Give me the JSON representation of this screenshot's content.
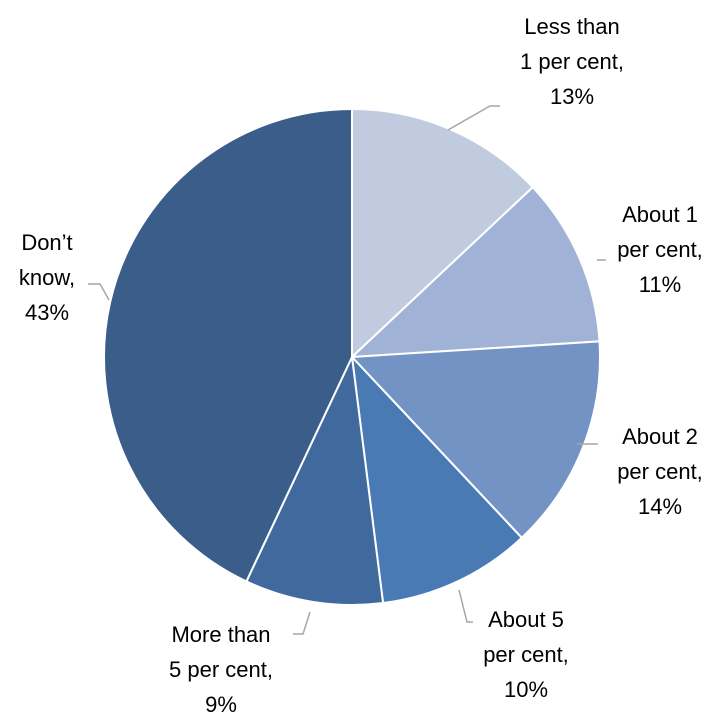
{
  "chart_data": {
    "type": "pie",
    "title": "",
    "slices": [
      {
        "label_lines": [
          "Less than",
          "1 per cent,",
          "13%"
        ],
        "category": "Less than 1 per cent",
        "value": 13,
        "color": "#c0cbe0"
      },
      {
        "label_lines": [
          "About 1",
          "per cent,",
          "11%"
        ],
        "category": "About 1 per cent",
        "value": 11,
        "color": "#a0b3d6"
      },
      {
        "label_lines": [
          "About 2",
          "per cent,",
          "14%"
        ],
        "category": "About 2 per cent",
        "value": 14,
        "color": "#7393c4"
      },
      {
        "label_lines": [
          "About 5",
          "per cent,",
          "10%"
        ],
        "category": "About 5 per cent",
        "value": 10,
        "color": "#4a7ab4"
      },
      {
        "label_lines": [
          "More than",
          "5 per cent,",
          "9%"
        ],
        "category": "More than 5 per cent",
        "value": 9,
        "color": "#40699e"
      },
      {
        "label_lines": [
          "Don’t",
          "know,",
          "43%"
        ],
        "category": "Don’t know",
        "value": 43,
        "color": "#3b5d8a"
      }
    ],
    "start_angle": "12 o'clock",
    "direction": "clockwise",
    "legend": "none",
    "data_labels": "outside with leader lines"
  }
}
